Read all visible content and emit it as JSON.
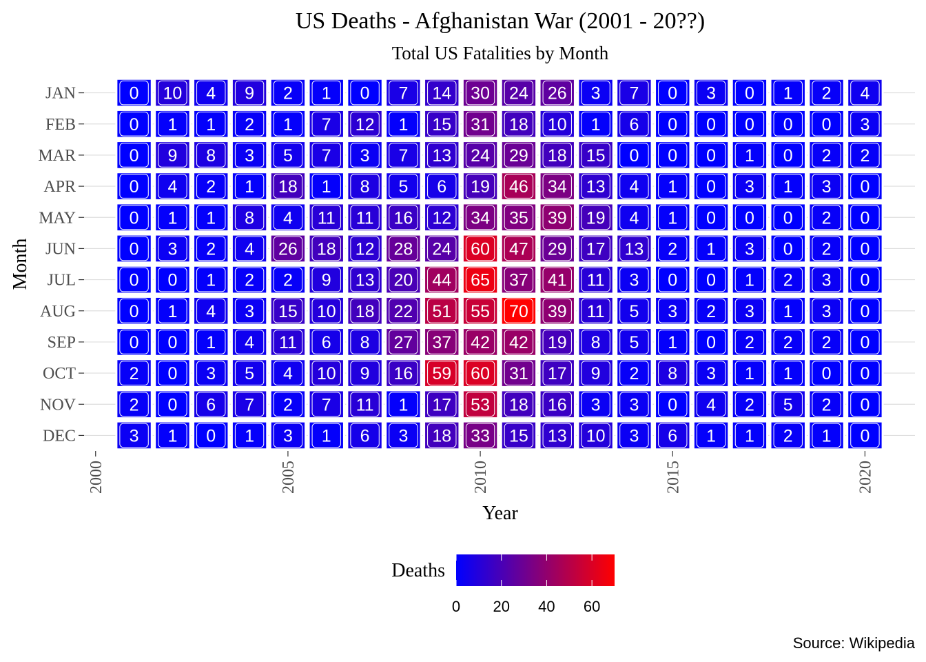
{
  "chart_data": {
    "type": "heatmap",
    "title": "US Deaths - Afghanistan War (2001 - 20??)",
    "subtitle": "Total US Fatalities by Month",
    "xlabel": "Year",
    "ylabel": "Month",
    "caption": "Source: Wikipedia",
    "x": [
      2001,
      2002,
      2003,
      2004,
      2005,
      2006,
      2007,
      2008,
      2009,
      2010,
      2011,
      2012,
      2013,
      2014,
      2015,
      2016,
      2017,
      2018,
      2019,
      2020
    ],
    "y": [
      "JAN",
      "FEB",
      "MAR",
      "APR",
      "MAY",
      "JUN",
      "JUL",
      "AUG",
      "SEP",
      "OCT",
      "NOV",
      "DEC"
    ],
    "xlim": [
      1999.7,
      2021.3
    ],
    "x_ticks": [
      2000,
      2005,
      2010,
      2015,
      2020
    ],
    "values": [
      [
        0,
        10,
        4,
        9,
        2,
        1,
        0,
        7,
        14,
        30,
        24,
        26,
        3,
        7,
        0,
        3,
        0,
        1,
        2,
        4
      ],
      [
        0,
        1,
        1,
        2,
        1,
        7,
        12,
        1,
        15,
        31,
        18,
        10,
        1,
        6,
        0,
        0,
        0,
        0,
        0,
        3
      ],
      [
        0,
        9,
        8,
        3,
        5,
        7,
        3,
        7,
        13,
        24,
        29,
        18,
        15,
        0,
        0,
        0,
        1,
        0,
        2,
        2
      ],
      [
        0,
        4,
        2,
        1,
        18,
        1,
        8,
        5,
        6,
        19,
        46,
        34,
        13,
        4,
        1,
        0,
        3,
        1,
        3,
        0
      ],
      [
        0,
        1,
        1,
        8,
        4,
        11,
        11,
        16,
        12,
        34,
        35,
        39,
        19,
        4,
        1,
        0,
        0,
        0,
        2,
        0
      ],
      [
        0,
        3,
        2,
        4,
        26,
        18,
        12,
        28,
        24,
        60,
        47,
        29,
        17,
        13,
        2,
        1,
        3,
        0,
        2,
        0
      ],
      [
        0,
        0,
        1,
        2,
        2,
        9,
        13,
        20,
        44,
        65,
        37,
        41,
        11,
        3,
        0,
        0,
        1,
        2,
        3,
        0
      ],
      [
        0,
        1,
        4,
        3,
        15,
        10,
        18,
        22,
        51,
        55,
        70,
        39,
        11,
        5,
        3,
        2,
        3,
        1,
        3,
        0
      ],
      [
        0,
        0,
        1,
        4,
        11,
        6,
        8,
        27,
        37,
        42,
        42,
        19,
        8,
        5,
        1,
        0,
        2,
        2,
        2,
        0
      ],
      [
        2,
        0,
        3,
        5,
        4,
        10,
        9,
        16,
        59,
        60,
        31,
        17,
        9,
        2,
        8,
        3,
        1,
        1,
        0,
        0
      ],
      [
        2,
        0,
        6,
        7,
        2,
        7,
        11,
        1,
        17,
        53,
        18,
        16,
        3,
        3,
        0,
        4,
        2,
        5,
        2,
        0
      ],
      [
        3,
        1,
        0,
        1,
        3,
        1,
        6,
        3,
        18,
        33,
        15,
        13,
        10,
        3,
        6,
        1,
        1,
        2,
        1,
        0
      ]
    ],
    "color_scale": {
      "low": "#0000ff",
      "high": "#ff0000",
      "min": 0,
      "max": 70
    },
    "legend": {
      "title": "Deaths",
      "ticks": [
        0,
        20,
        40,
        60
      ],
      "position": "bottom"
    },
    "grid": true
  }
}
